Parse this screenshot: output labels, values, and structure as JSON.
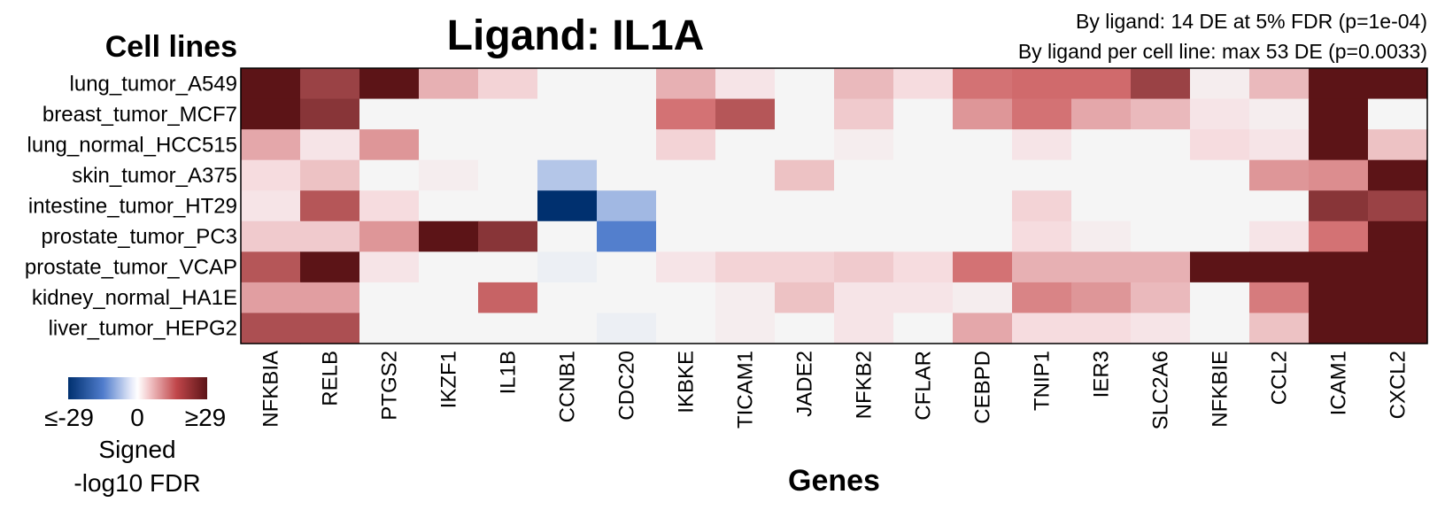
{
  "chart_data": {
    "type": "heatmap",
    "title": "Ligand: IL1A",
    "annotations": [
      "By ligand: 14 DE at 5% FDR (p=1e-04)",
      "By ligand per cell line: max 53 DE (p=0.0033)"
    ],
    "ylabel": "Cell lines",
    "xlabel": "Genes",
    "rows": [
      "lung_tumor_A549",
      "breast_tumor_MCF7",
      "lung_normal_HCC515",
      "skin_tumor_A375",
      "intestine_tumor_HT29",
      "prostate_tumor_PC3",
      "prostate_tumor_VCAP",
      "kidney_normal_HA1E",
      "liver_tumor_HEPG2"
    ],
    "columns": [
      "NFKBIA",
      "RELB",
      "PTGS2",
      "IKZF1",
      "IL1B",
      "CCNB1",
      "CDC20",
      "IKBKE",
      "TICAM1",
      "JADE2",
      "NFKB2",
      "CFLAR",
      "CEBPD",
      "TNIP1",
      "IER3",
      "SLC2A6",
      "NFKBIE",
      "CCL2",
      "ICAM1",
      "CXCL2"
    ],
    "values": [
      [
        29,
        22,
        29,
        8,
        4,
        0,
        0,
        8,
        2,
        0,
        7,
        3,
        15,
        16,
        16,
        22,
        1,
        7,
        29,
        29
      ],
      [
        29,
        24,
        0,
        0,
        0,
        0,
        0,
        15,
        19,
        0,
        5,
        0,
        11,
        15,
        9,
        7,
        2,
        1,
        29,
        0
      ],
      [
        9,
        2,
        11,
        0,
        0,
        0,
        0,
        4,
        0,
        0,
        1,
        0,
        0,
        2,
        0,
        0,
        3,
        2,
        29,
        6
      ],
      [
        3,
        6,
        0,
        1,
        0,
        -7,
        0,
        0,
        0,
        6,
        0,
        0,
        0,
        0,
        0,
        0,
        0,
        11,
        12,
        29
      ],
      [
        2,
        19,
        3,
        0,
        0,
        -29,
        -9,
        0,
        0,
        0,
        0,
        0,
        0,
        4,
        0,
        0,
        0,
        0,
        24,
        22
      ],
      [
        5,
        5,
        11,
        29,
        24,
        0,
        -17,
        0,
        0,
        0,
        0,
        0,
        0,
        3,
        1,
        0,
        0,
        2,
        15,
        29
      ],
      [
        19,
        29,
        2,
        0,
        0,
        -1,
        0,
        2,
        4,
        4,
        5,
        3,
        15,
        8,
        8,
        8,
        29,
        29,
        29,
        29
      ],
      [
        10,
        10,
        0,
        0,
        17,
        0,
        0,
        0,
        1,
        6,
        2,
        2,
        1,
        13,
        11,
        7,
        0,
        14,
        29,
        29
      ],
      [
        20,
        20,
        0,
        0,
        0,
        0,
        -1,
        0,
        1,
        0,
        2,
        0,
        9,
        3,
        3,
        2,
        0,
        6,
        29,
        29
      ]
    ],
    "legend": {
      "min_label": "≤-29",
      "mid_label": "0",
      "max_label": "≥29",
      "title_line1": "Signed",
      "title_line2": "-log10 FDR",
      "range": [
        -29,
        29
      ]
    },
    "colors": {
      "neg_end": "#00306f",
      "neg_light": "#ffffff",
      "mid": "#f5f5f5",
      "pos_light": "#f6dde0",
      "pos_mid": "#d06a6c",
      "pos_end": "#5c1417"
    }
  }
}
